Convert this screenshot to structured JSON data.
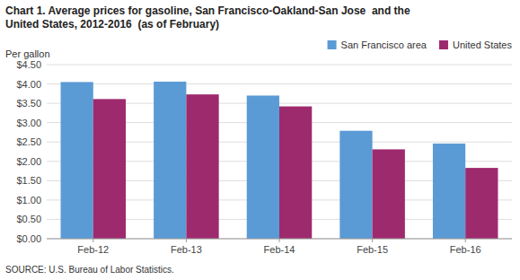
{
  "chart_data": {
    "type": "bar",
    "title": "Chart 1. Average prices for gasoline, San Francisco-Oakland-San Jose  and the\nUnited States, 2012-2016  (as of February)",
    "y_label": "Per gallon",
    "annotations": [
      "SOURCE: U.S. Bureau of Labor Statistics."
    ],
    "categories": [
      "Feb-12",
      "Feb-13",
      "Feb-14",
      "Feb-15",
      "Feb-16"
    ],
    "series": [
      {
        "name": "San Francisco area",
        "color": "#5B9BD5",
        "values": [
          4.05,
          4.06,
          3.7,
          2.79,
          2.46
        ]
      },
      {
        "name": "United States",
        "color": "#9E2A6E",
        "values": [
          3.61,
          3.73,
          3.42,
          2.31,
          1.83
        ]
      }
    ],
    "ylim": [
      0,
      4.5
    ],
    "yticks": [
      {
        "value": 0,
        "label": "$0.00"
      },
      {
        "value": 0.5,
        "label": "$0.50"
      },
      {
        "value": 1.0,
        "label": "$1.00"
      },
      {
        "value": 1.5,
        "label": "$1.50"
      },
      {
        "value": 2.0,
        "label": "$2.00"
      },
      {
        "value": 2.5,
        "label": "$2.50"
      },
      {
        "value": 3.0,
        "label": "$3.00"
      },
      {
        "value": 3.5,
        "label": "$3.50"
      },
      {
        "value": 4.0,
        "label": "$4.00"
      },
      {
        "value": 4.5,
        "label": "$4.50"
      }
    ],
    "grid": true,
    "legend": "upper right"
  }
}
